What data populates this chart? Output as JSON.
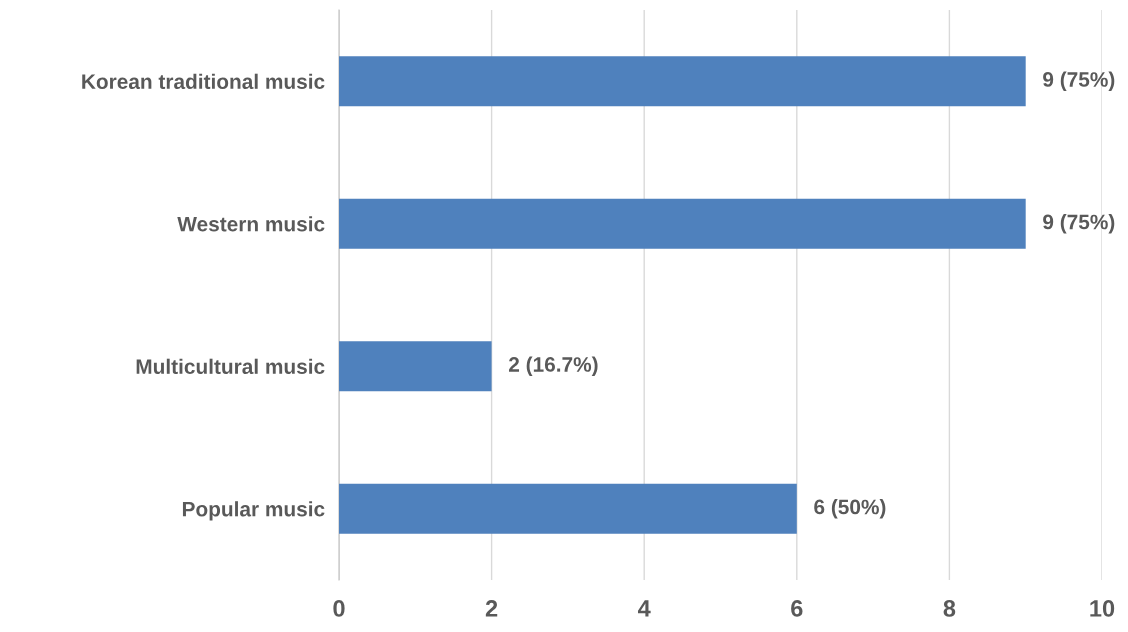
{
  "chart_data": {
    "type": "bar",
    "orientation": "horizontal",
    "categories": [
      "Korean traditional music",
      "Western music",
      "Multicultural music",
      "Popular music"
    ],
    "values": [
      9,
      9,
      2,
      6
    ],
    "value_labels": [
      "9 (75%)",
      "9 (75%)",
      "2 (16.7%)",
      "6 (50%)"
    ],
    "color": "#4f81bd",
    "xlim": [
      0,
      10
    ],
    "xticks": [
      0,
      2,
      4,
      6,
      8,
      10
    ],
    "grid": "x",
    "legend": false
  }
}
